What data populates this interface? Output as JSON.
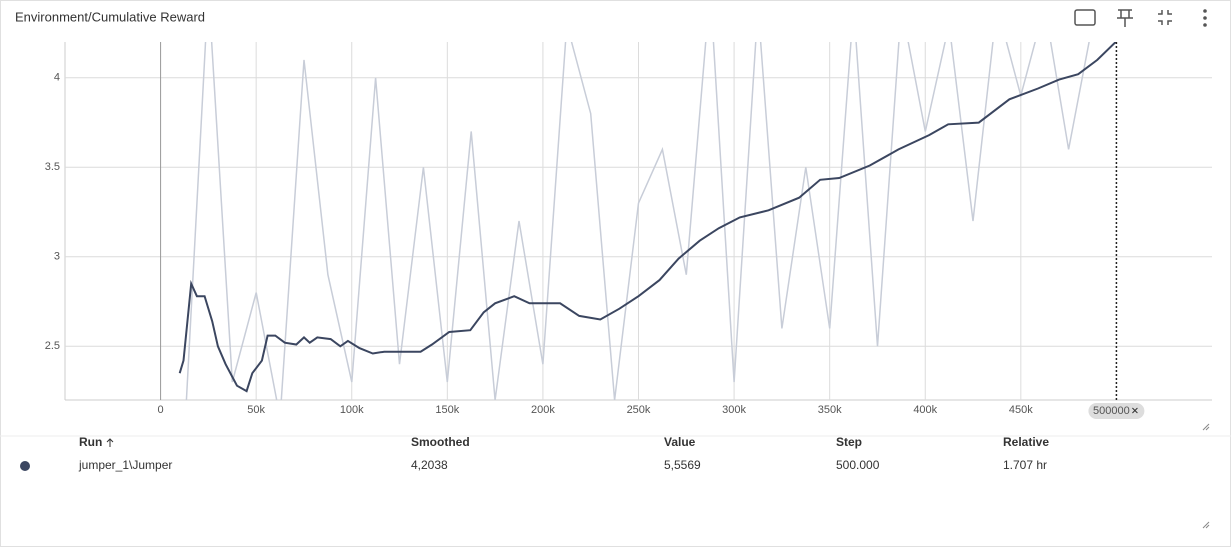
{
  "chart_data": {
    "type": "line",
    "title": "Environment/Cumulative Reward",
    "xlim": [
      -50000,
      550000
    ],
    "ylim": [
      2.2,
      4.2
    ],
    "xticks": [
      0,
      {
        "value": 50000,
        "label": "50k"
      },
      {
        "value": 100000,
        "label": "100k"
      },
      {
        "value": 150000,
        "label": "150k"
      },
      {
        "value": 200000,
        "label": "200k"
      },
      {
        "value": 250000,
        "label": "250k"
      },
      {
        "value": 300000,
        "label": "300k"
      },
      {
        "value": 350000,
        "label": "350k"
      },
      {
        "value": 400000,
        "label": "400k"
      },
      {
        "value": 450000,
        "label": "450k"
      }
    ],
    "yticks": [
      2.5,
      3,
      3.5,
      4
    ],
    "grid": true,
    "cursor_x": 500000,
    "series": [
      {
        "color": "#c8cdd8",
        "x": [
          12500,
          25000,
          37500,
          50000,
          62500,
          75000,
          87500,
          100000,
          112500,
          125000,
          137500,
          150000,
          162500,
          175000,
          187500,
          200000,
          212500,
          225000,
          237500,
          250000,
          262500,
          275000,
          287500,
          300000,
          312500,
          325000,
          337500,
          350000,
          362500,
          375000,
          387500,
          400000,
          412500,
          425000,
          437500,
          450000,
          462500,
          475000,
          487500,
          500000
        ],
        "values": [
          2.0,
          4.5,
          2.3,
          2.8,
          2.1,
          4.1,
          2.9,
          2.3,
          4.0,
          2.4,
          3.5,
          2.3,
          3.7,
          2.2,
          3.2,
          2.4,
          4.3,
          3.8,
          2.2,
          3.3,
          3.6,
          2.9,
          4.5,
          2.3,
          4.4,
          2.6,
          3.5,
          2.6,
          4.4,
          2.5,
          4.4,
          3.7,
          4.3,
          3.2,
          4.4,
          3.9,
          4.4,
          3.6,
          4.3,
          5.5569
        ]
      },
      {
        "color": "#3b4660",
        "x": [
          10000,
          12000,
          16000,
          19000,
          23000,
          27000,
          30000,
          34000,
          40000,
          45000,
          48000,
          53000,
          56000,
          60000,
          65000,
          71000,
          75000,
          78000,
          82000,
          89000,
          94000,
          98000,
          104000,
          111000,
          117000,
          125000,
          136000,
          142000,
          151000,
          162000,
          169000,
          175000,
          185000,
          193000,
          209000,
          219000,
          230000,
          240000,
          250000,
          261000,
          271000,
          282000,
          292000,
          303000,
          318000,
          334000,
          345000,
          355000,
          371000,
          386000,
          402000,
          412000,
          428000,
          444000,
          459000,
          470000,
          480000,
          490000,
          500000
        ],
        "values": [
          2.35,
          2.42,
          2.85,
          2.78,
          2.78,
          2.64,
          2.5,
          2.4,
          2.28,
          2.25,
          2.35,
          2.42,
          2.56,
          2.56,
          2.52,
          2.51,
          2.55,
          2.52,
          2.55,
          2.54,
          2.5,
          2.53,
          2.49,
          2.46,
          2.47,
          2.47,
          2.47,
          2.51,
          2.58,
          2.59,
          2.69,
          2.74,
          2.78,
          2.74,
          2.74,
          2.67,
          2.65,
          2.71,
          2.78,
          2.87,
          2.99,
          3.09,
          3.16,
          3.22,
          3.26,
          3.33,
          3.43,
          3.44,
          3.51,
          3.6,
          3.68,
          3.74,
          3.75,
          3.88,
          3.94,
          3.99,
          4.02,
          4.1,
          4.2038
        ]
      }
    ]
  },
  "table": {
    "headers": [
      "Run",
      "Smoothed",
      "Value",
      "Step",
      "Relative"
    ],
    "rows": [
      [
        "jumper_1\\Jumper",
        "4,2038",
        "5,5569",
        "500.000",
        "1.707 hr"
      ]
    ]
  }
}
